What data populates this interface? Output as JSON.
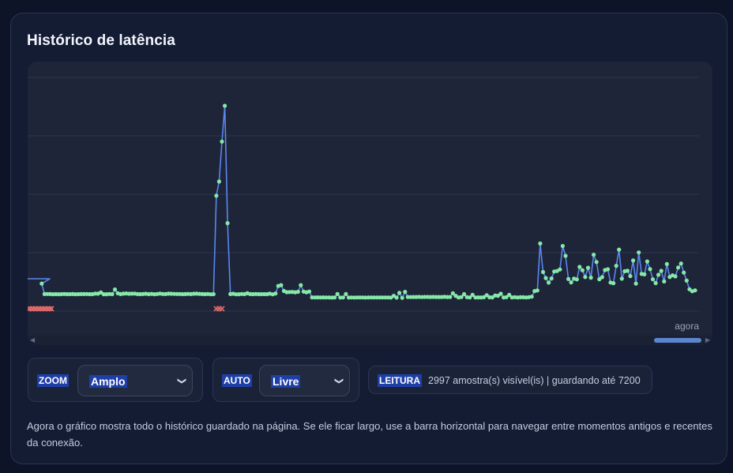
{
  "panel": {
    "title": "Histórico de latência"
  },
  "chart": {
    "now_label": "agora"
  },
  "controls": {
    "zoom": {
      "label": "ZOOM",
      "value": "Amplo"
    },
    "auto": {
      "label": "AUTO",
      "value": "Livre"
    },
    "reading": {
      "label": "LEITURA",
      "text": "2997 amostra(s) visível(is) | guardando até 7200"
    }
  },
  "description": "Agora o gráfico mostra todo o histórico guardado na página. Se ele ficar largo, use a barra horizontal para navegar entre momentos antigos e recentes da conexão.",
  "colors": {
    "line": "#5b86f0",
    "point": "#86e8a8",
    "failure": "#e06a6a",
    "grid": "#2c3550"
  },
  "chart_data": {
    "type": "line",
    "title": "",
    "xlabel": "",
    "ylabel": "",
    "x_label_right": "agora",
    "grid": true,
    "series": [
      {
        "values": [
          35.5,
          35.5,
          35.5,
          35.4,
          35.3,
          30.2,
          18.7,
          18.8,
          18.7,
          18.5,
          18.6,
          18.5,
          18.6,
          18.8,
          18.6,
          18.6,
          18.7,
          18.5,
          18.6,
          18.7,
          18.7,
          18.8,
          18.6,
          18.6,
          19.2,
          19.1,
          20.4,
          18.5,
          18.5,
          18.8,
          18.6,
          23.7,
          19.6,
          18.7,
          19.1,
          19.4,
          19.0,
          19.1,
          19.2,
          18.7,
          18.6,
          18.8,
          19.0,
          18.6,
          18.9,
          18.5,
          18.8,
          19.2,
          18.8,
          18.7,
          19.1,
          19.0,
          18.9,
          18.8,
          18.8,
          18.6,
          18.7,
          18.9,
          18.7,
          19.0,
          19.1,
          18.9,
          18.7,
          18.6,
          18.8,
          18.4,
          18.6,
          126.4,
          142.0,
          185.8,
          225.0,
          96.4,
          18.7,
          19.0,
          18.4,
          18.5,
          18.8,
          18.6,
          19.6,
          18.7,
          18.6,
          18.8,
          18.6,
          18.6,
          18.6,
          18.6,
          19.1,
          18.4,
          19.3,
          27.6,
          28.5,
          22.1,
          20.8,
          20.9,
          21.0,
          20.7,
          21.2,
          28.5,
          21.4,
          20.7,
          21.5,
          15.1,
          15.0,
          15.1,
          15.0,
          15.1,
          15.0,
          15.0,
          14.9,
          15.0,
          18.7,
          14.9,
          15.0,
          18.7,
          14.9,
          15.0,
          14.9,
          15.0,
          15.0,
          15.0,
          14.9,
          15.0,
          15.0,
          15.0,
          15.0,
          15.0,
          15.0,
          15.0,
          15.0,
          14.9,
          16.8,
          14.8,
          20.0,
          14.5,
          21.1,
          15.5,
          15.4,
          15.5,
          15.5,
          15.6,
          15.4,
          15.6,
          15.6,
          15.5,
          15.6,
          15.5,
          15.5,
          15.5,
          15.7,
          15.5,
          15.5,
          19.6,
          16.8,
          15.0,
          15.4,
          18.6,
          15.3,
          15.0,
          17.8,
          15.0,
          15.1,
          15.0,
          15.2,
          17.5,
          15.2,
          15.1,
          17.1,
          16.9,
          19.0,
          15.0,
          15.3,
          17.8,
          15.1,
          15.3,
          15.0,
          15.2,
          15.2,
          15.0,
          15.3,
          15.8,
          22.0,
          22.7,
          74.1,
          42.8,
          36.3,
          31.2,
          35.8,
          43.4,
          44.0,
          45.7,
          71.4,
          60.6,
          35.2,
          31.5,
          35.6,
          34.8,
          48.5,
          44.8,
          37.4,
          47.5,
          36.7,
          61.8,
          53.8,
          35.0,
          37.2,
          45.0,
          45.9,
          31.3,
          30.6,
          49.7,
          67.4,
          35.6,
          43.7,
          44.2,
          38.3,
          55.5,
          30.2,
          64.3,
          40.8,
          40.3,
          54.4,
          46.0,
          34.9,
          30.7,
          39.8,
          44.1,
          32.5,
          51.6,
          37.4,
          39.2,
          38.1,
          47.8,
          52.2,
          42.2,
          33.5,
          24.0,
          21.8,
          22.8
        ],
        "failures_at_indices": [
          0,
          1,
          2,
          3,
          4,
          5,
          6,
          67,
          68,
          69
        ]
      }
    ]
  }
}
